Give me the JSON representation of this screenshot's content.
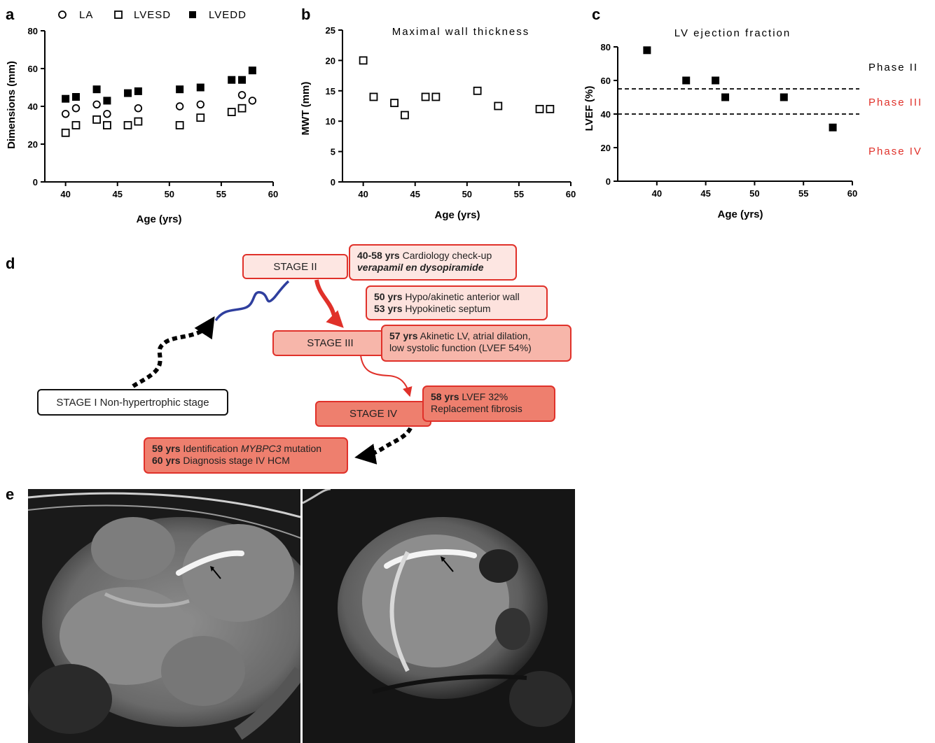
{
  "panel_letters": {
    "a": "a",
    "b": "b",
    "c": "c",
    "d": "d",
    "e": "e"
  },
  "chart_data": [
    {
      "panel": "a",
      "type": "scatter",
      "title": "",
      "xlabel": "Age (yrs)",
      "ylabel": "Dimensions (mm)",
      "xlim": [
        38,
        60
      ],
      "ylim": [
        0,
        80
      ],
      "xticks": [
        40,
        45,
        50,
        55,
        60
      ],
      "yticks": [
        0,
        20,
        40,
        60,
        80
      ],
      "legend_position": "top",
      "series": [
        {
          "name": "LA",
          "marker": "circle-open",
          "x": [
            40,
            41,
            43,
            44,
            47,
            51,
            53,
            57,
            58
          ],
          "y": [
            36,
            39,
            41,
            36,
            39,
            40,
            41,
            46,
            43
          ]
        },
        {
          "name": "LVESD",
          "marker": "square-open",
          "x": [
            40,
            41,
            43,
            44,
            46,
            47,
            51,
            53,
            56,
            57
          ],
          "y": [
            26,
            30,
            33,
            30,
            30,
            32,
            30,
            34,
            37,
            39
          ]
        },
        {
          "name": "LVEDD",
          "marker": "square-filled",
          "x": [
            40,
            41,
            43,
            44,
            46,
            47,
            51,
            53,
            56,
            57,
            58
          ],
          "y": [
            44,
            45,
            49,
            43,
            47,
            48,
            49,
            50,
            54,
            54,
            59
          ]
        }
      ]
    },
    {
      "panel": "b",
      "type": "scatter",
      "title": "Maximal wall thickness",
      "xlabel": "Age (yrs)",
      "ylabel": "MWT (mm)",
      "xlim": [
        38,
        60
      ],
      "ylim": [
        0,
        25
      ],
      "xticks": [
        40,
        45,
        50,
        55,
        60
      ],
      "yticks": [
        0,
        5,
        10,
        15,
        20,
        25
      ],
      "series": [
        {
          "marker": "square-open",
          "x": [
            40,
            41,
            43,
            44,
            46,
            47,
            51,
            53,
            57,
            58
          ],
          "y": [
            20,
            14,
            13,
            11,
            14,
            14,
            15,
            12.5,
            12,
            12
          ]
        }
      ]
    },
    {
      "panel": "c",
      "type": "scatter",
      "title": "LV ejection fraction",
      "xlabel": "Age (yrs)",
      "ylabel": "LVEF (%)",
      "xlim": [
        36,
        60
      ],
      "ylim": [
        0,
        90
      ],
      "xticks": [
        40,
        45,
        50,
        55,
        60
      ],
      "yticks": [
        0,
        20,
        40,
        60,
        80
      ],
      "reference_lines": [
        55,
        40
      ],
      "phases": [
        {
          "label": "Phase II",
          "color": "#222222"
        },
        {
          "label": "Phase III",
          "color": "#e0312a"
        },
        {
          "label": "Phase IV",
          "color": "#e0312a"
        }
      ],
      "series": [
        {
          "marker": "square-filled",
          "x": [
            39,
            43,
            46,
            47,
            53,
            58
          ],
          "y": [
            78,
            60,
            60,
            50,
            50,
            32
          ]
        }
      ]
    }
  ],
  "diagram": {
    "stage1": "STAGE I Non-hypertrophic stage",
    "stage2": "STAGE II",
    "stage3": "STAGE III",
    "stage4": "STAGE IV",
    "note1": {
      "b1": "40-58 yrs",
      "t1": " Cardiology check-up",
      "b2": "verapamil en dysopiramide"
    },
    "note2": {
      "b1": "50 yrs",
      "t1": " Hypo/akinetic anterior wall",
      "b2": "53 yrs",
      "t2": " Hypokinetic septum"
    },
    "note3": {
      "b1": "57 yrs",
      "t1": " Akinetic LV, atrial dilation,",
      "t2": "low systolic function (LVEF 54%)"
    },
    "note4": {
      "b1": "58 yrs",
      "t1": " LVEF 32%",
      "t2": "Replacement fibrosis"
    },
    "note5": {
      "b1": "59 yrs",
      "t1": " Identification ",
      "i1": "MYBPC3",
      "t1b": " mutation",
      "b2": "60 yrs",
      "t2": " Diagnosis stage IV HCM"
    }
  },
  "colors": {
    "accent_red": "#e0312a",
    "stage2_fill": "#fde6e2",
    "stage3_fill": "#f7b6aa",
    "stage4_fill": "#ee7f6e",
    "curve_blue": "#2f3f9e"
  }
}
